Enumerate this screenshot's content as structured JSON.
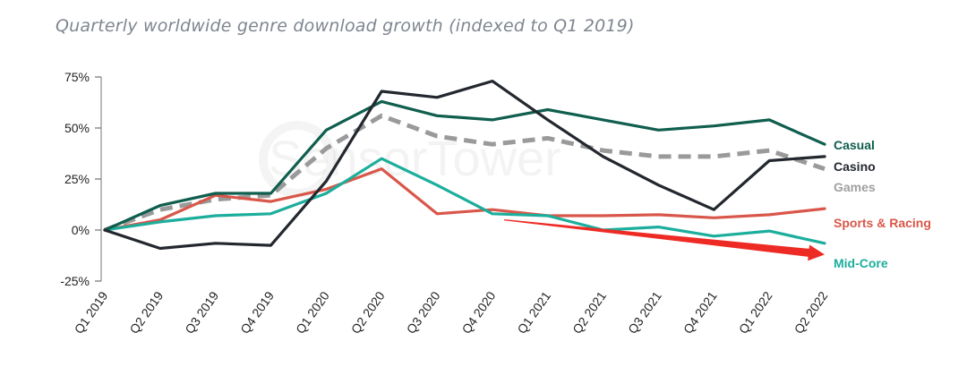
{
  "chart_data": {
    "type": "line",
    "title": "Quarterly worldwide genre download growth (indexed to Q1 2019)",
    "watermark": "SensorTower",
    "xlabel": "",
    "ylabel": "",
    "ylim": [
      -25,
      75
    ],
    "yticks": [
      75,
      50,
      25,
      0,
      -25
    ],
    "ytick_labels": [
      "75%",
      "50%",
      "25%",
      "0%",
      "-25%"
    ],
    "categories": [
      "Q1 2019",
      "Q2 2019",
      "Q3 2019",
      "Q4 2019",
      "Q1 2020",
      "Q2 2020",
      "Q3 2020",
      "Q4 2020",
      "Q1 2021",
      "Q2 2021",
      "Q3 2021",
      "Q4 2021",
      "Q1 2022",
      "Q2 2022"
    ],
    "series": [
      {
        "name": "Games",
        "color": "#9a9a9a",
        "style": "dashed",
        "values": [
          0,
          10,
          15,
          17,
          40,
          56,
          46,
          42,
          45,
          39,
          36,
          36,
          39,
          30
        ]
      },
      {
        "name": "Sports & Racing",
        "color": "#d9574a",
        "style": "solid",
        "values": [
          0,
          5,
          17,
          14,
          20,
          30,
          8,
          10,
          7,
          7,
          7.5,
          6,
          7.5,
          10.5
        ]
      },
      {
        "name": "Mid-Core",
        "color": "#1cae9c",
        "style": "solid",
        "values": [
          0,
          4,
          7,
          8,
          18,
          35,
          22,
          8,
          7,
          0,
          1.5,
          -3,
          -0.5,
          -6.5
        ]
      },
      {
        "name": "Casual",
        "color": "#0f5e4e",
        "style": "solid",
        "values": [
          0,
          12,
          18,
          18,
          49,
          63,
          56,
          54,
          59,
          54,
          49,
          51,
          54,
          42
        ]
      },
      {
        "name": "Casino",
        "color": "#23272e",
        "style": "solid",
        "values": [
          0,
          -9,
          -6.5,
          -7.5,
          24,
          68,
          65,
          73,
          54,
          36,
          22,
          10,
          34,
          36
        ]
      }
    ],
    "legend": [
      "Casual",
      "Casino",
      "Games",
      "Sports & Racing",
      "Mid-Core"
    ],
    "legend_colors": [
      "#0f5e4e",
      "#23272e",
      "#a0a0a0",
      "#d9574a",
      "#1cae9c"
    ],
    "annotation": {
      "type": "trend-arrow",
      "color": "#ee2a24",
      "from": {
        "x": "Q4 2020",
        "y": 5
      },
      "to": {
        "x": "Q2 2022",
        "y": -12
      }
    }
  }
}
